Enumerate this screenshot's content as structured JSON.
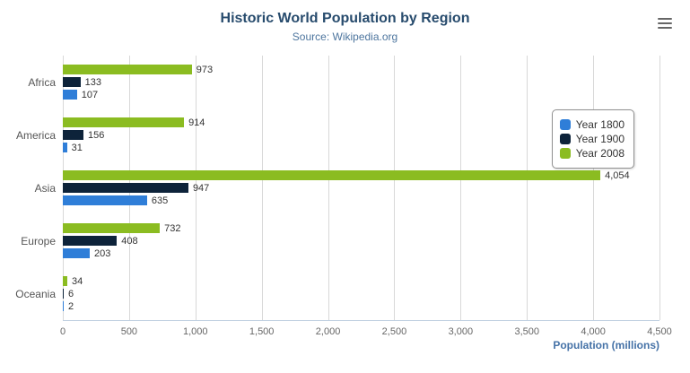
{
  "header": {
    "title": "Historic World Population by Region",
    "subtitle": "Source: Wikipedia.org"
  },
  "export_menu": {
    "icon": "hamburger-icon"
  },
  "chart_data": {
    "type": "bar",
    "orientation": "horizontal",
    "categories": [
      "Africa",
      "America",
      "Asia",
      "Europe",
      "Oceania"
    ],
    "series": [
      {
        "name": "Year 1800",
        "color": "#2f7ed8",
        "values": [
          107,
          31,
          635,
          203,
          2
        ]
      },
      {
        "name": "Year 1900",
        "color": "#0d233a",
        "values": [
          133,
          156,
          947,
          408,
          6
        ]
      },
      {
        "name": "Year 2008",
        "color": "#8bbc21",
        "values": [
          973,
          914,
          4054,
          732,
          34
        ]
      }
    ],
    "bar_order_top_to_bottom": [
      "Year 2008",
      "Year 1900",
      "Year 1800"
    ],
    "xlabel": "Population (millions)",
    "ylabel": "",
    "xlim": [
      0,
      4500
    ],
    "x_ticks": [
      0,
      500,
      1000,
      1500,
      2000,
      2500,
      3000,
      3500,
      4000,
      4500
    ],
    "tick_labels": [
      "0",
      "500",
      "1,000",
      "1,500",
      "2,000",
      "2,500",
      "3,000",
      "3,500",
      "4,000",
      "4,500"
    ],
    "grid": true,
    "legend_position": "right",
    "data_labels": true
  }
}
